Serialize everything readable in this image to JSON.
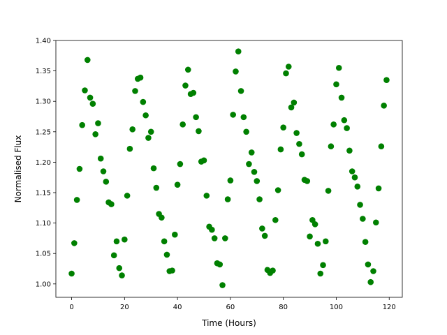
{
  "chart_data": {
    "type": "scatter",
    "x_label": "Time (Hours)",
    "y_label": "Normalised Flux",
    "color": "#008000",
    "x": [
      0,
      1,
      2,
      3,
      4,
      5,
      6,
      7,
      8,
      9,
      10,
      11,
      12,
      13,
      14,
      15,
      16,
      17,
      18,
      19,
      20,
      21,
      22,
      23,
      24,
      25,
      26,
      27,
      28,
      29,
      30,
      31,
      32,
      33,
      34,
      35,
      36,
      37,
      38,
      39,
      40,
      41,
      42,
      43,
      44,
      45,
      46,
      47,
      48,
      49,
      50,
      51,
      52,
      53,
      54,
      55,
      56,
      57,
      58,
      59,
      60,
      61,
      62,
      63,
      64,
      65,
      66,
      67,
      68,
      69,
      70,
      71,
      72,
      73,
      74,
      75,
      76,
      77,
      78,
      79,
      80,
      81,
      82,
      83,
      84,
      85,
      86,
      87,
      88,
      89,
      90,
      91,
      92,
      93,
      94,
      95,
      96,
      97,
      98,
      99,
      100,
      101,
      102,
      103,
      104,
      105,
      106,
      107,
      108,
      109,
      110,
      111,
      112,
      113,
      114,
      115,
      116,
      117,
      118,
      119
    ],
    "values": [
      1.017,
      1.067,
      1.138,
      1.189,
      1.261,
      1.318,
      1.368,
      1.306,
      1.296,
      1.246,
      1.264,
      1.206,
      1.185,
      1.168,
      1.134,
      1.131,
      1.047,
      1.07,
      1.026,
      1.014,
      1.073,
      1.145,
      1.222,
      1.254,
      1.317,
      1.337,
      1.339,
      1.299,
      1.277,
      1.24,
      1.25,
      1.19,
      1.158,
      1.115,
      1.109,
      1.07,
      1.048,
      1.021,
      1.022,
      1.081,
      1.163,
      1.197,
      1.262,
      1.326,
      1.352,
      1.312,
      1.314,
      1.274,
      1.251,
      1.201,
      1.203,
      1.145,
      1.094,
      1.089,
      1.075,
      1.034,
      1.032,
      0.998,
      1.075,
      1.139,
      1.17,
      1.278,
      1.349,
      1.382,
      1.317,
      1.274,
      1.25,
      1.197,
      1.216,
      1.184,
      1.169,
      1.139,
      1.091,
      1.079,
      1.023,
      1.018,
      1.022,
      1.105,
      1.154,
      1.221,
      1.257,
      1.346,
      1.357,
      1.29,
      1.298,
      1.248,
      1.23,
      1.213,
      1.171,
      1.169,
      1.078,
      1.105,
      1.098,
      1.066,
      1.017,
      1.031,
      1.07,
      1.153,
      1.226,
      1.262,
      1.328,
      1.355,
      1.306,
      1.269,
      1.256,
      1.219,
      1.185,
      1.175,
      1.16,
      1.13,
      1.107,
      1.069,
      1.032,
      1.003,
      1.021,
      1.101,
      1.157,
      1.226,
      1.293,
      1.335
    ],
    "xlim": [
      -5.95,
      124.95
    ],
    "ylim": [
      0.978,
      1.4
    ],
    "xticks": [
      0,
      20,
      40,
      60,
      80,
      100,
      120
    ],
    "yticks": [
      {
        "value": 1.0,
        "label": "1.00"
      },
      1.05,
      {
        "value": 1.1,
        "label": "1.10"
      },
      1.15,
      {
        "value": 1.2,
        "label": "1.20"
      },
      1.25,
      {
        "value": 1.3,
        "label": "1.30"
      },
      1.35,
      {
        "value": 1.4,
        "label": "1.40"
      }
    ],
    "grid": false
  }
}
